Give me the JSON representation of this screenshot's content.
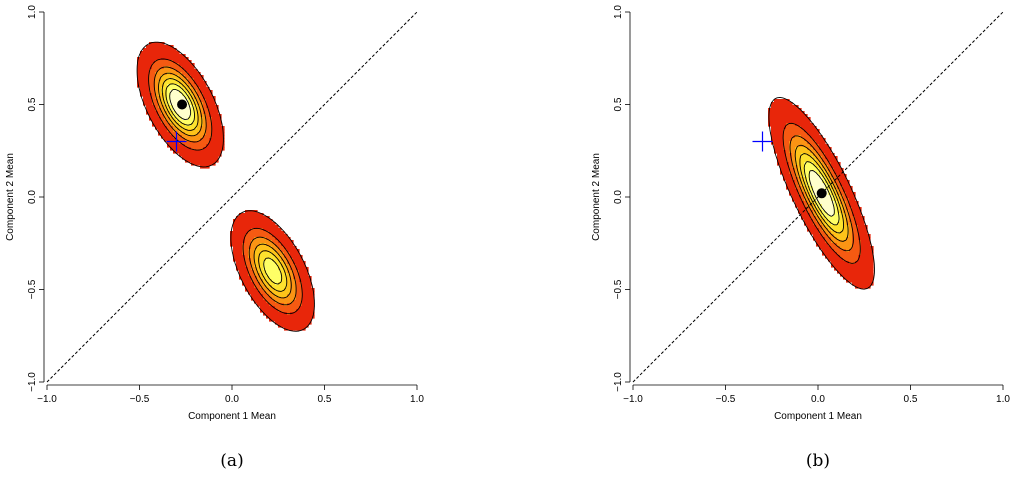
{
  "chart_data": [
    {
      "type": "contour",
      "panel_label": "(a)",
      "xlabel": "Component 1 Mean",
      "ylabel": "Component 2 Mean",
      "xlim": [
        -1.0,
        1.0
      ],
      "ylim": [
        -1.0,
        1.0
      ],
      "x_ticks": [
        "-1.0",
        "-0.5",
        "0.0",
        "0.5",
        "1.0"
      ],
      "y_ticks": [
        "-1.0",
        "-0.5",
        "0.0",
        "0.5",
        "1.0"
      ],
      "reference_line": {
        "from": [
          -1.0,
          -1.0
        ],
        "to": [
          1.0,
          1.0
        ],
        "style": "dashed"
      },
      "density_modes": [
        {
          "x": -0.28,
          "y": 0.5,
          "weight": 1.0,
          "sx": 0.09,
          "sy": 0.13,
          "rho": -0.55
        },
        {
          "x": 0.22,
          "y": -0.4,
          "weight": 0.8,
          "sx": 0.09,
          "sy": 0.13,
          "rho": -0.55
        }
      ],
      "contour_levels": 7,
      "colors": [
        "#e8260a",
        "#f55a12",
        "#fb9414",
        "#fdc31a",
        "#fde22e",
        "#ffff66",
        "#ffffcc"
      ],
      "mode_marker": {
        "x": -0.27,
        "y": 0.5,
        "shape": "dot",
        "color": "#000000"
      },
      "truth_marker": {
        "x": -0.3,
        "y": 0.3,
        "shape": "cross",
        "color": "#0000ff"
      }
    },
    {
      "type": "contour",
      "panel_label": "(b)",
      "xlabel": "Component 1 Mean",
      "ylabel": "Component 2 Mean",
      "xlim": [
        -1.0,
        1.0
      ],
      "ylim": [
        -1.0,
        1.0
      ],
      "x_ticks": [
        "-1.0",
        "-0.5",
        "0.0",
        "0.5",
        "1.0"
      ],
      "y_ticks": [
        "-1.0",
        "-0.5",
        "0.0",
        "0.5",
        "1.0"
      ],
      "reference_line": {
        "from": [
          -1.0,
          -1.0
        ],
        "to": [
          1.0,
          1.0
        ],
        "style": "dashed"
      },
      "density_modes": [
        {
          "x": 0.02,
          "y": 0.02,
          "weight": 1.0,
          "sx": 0.11,
          "sy": 0.2,
          "rho": -0.8
        }
      ],
      "contour_levels": 7,
      "colors": [
        "#e8260a",
        "#f55a12",
        "#fb9414",
        "#fdc31a",
        "#fde22e",
        "#ffff66",
        "#ffffcc"
      ],
      "mode_marker": {
        "x": 0.02,
        "y": 0.02,
        "shape": "dot",
        "color": "#000000"
      },
      "truth_marker": {
        "x": -0.3,
        "y": 0.3,
        "shape": "cross",
        "color": "#0000ff"
      }
    }
  ]
}
